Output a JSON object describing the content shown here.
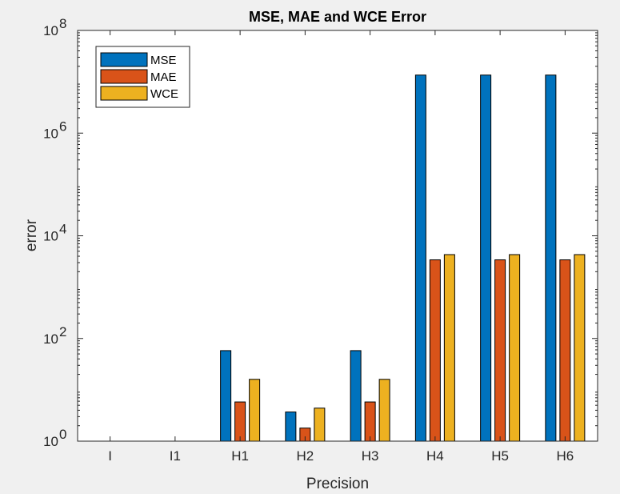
{
  "chart_data": {
    "type": "bar",
    "title": "MSE, MAE and WCE Error",
    "xlabel": "Precision",
    "ylabel": "error",
    "y_scale": "log",
    "ylim": [
      1,
      100000000
    ],
    "y_ticks": [
      {
        "value": 1,
        "base": "10",
        "exp": "0"
      },
      {
        "value": 100,
        "base": "10",
        "exp": "2"
      },
      {
        "value": 10000,
        "base": "10",
        "exp": "4"
      },
      {
        "value": 1000000,
        "base": "10",
        "exp": "6"
      },
      {
        "value": 100000000,
        "base": "10",
        "exp": "8"
      }
    ],
    "categories": [
      "I",
      "I1",
      "H1",
      "H2",
      "H3",
      "H4",
      "H5",
      "H6"
    ],
    "series": [
      {
        "name": "MSE",
        "color": "#0072bd",
        "values": [
          1,
          1,
          58,
          3.7,
          58,
          13500000,
          13500000,
          13500000
        ]
      },
      {
        "name": "MAE",
        "color": "#d95319",
        "values": [
          1,
          1,
          5.8,
          1.8,
          5.8,
          3400,
          3400,
          3400
        ]
      },
      {
        "name": "WCE",
        "color": "#edb120",
        "values": [
          1,
          1,
          16,
          4.4,
          16,
          4300,
          4300,
          4300
        ]
      }
    ],
    "legend_position": "top-left",
    "grid": false
  }
}
